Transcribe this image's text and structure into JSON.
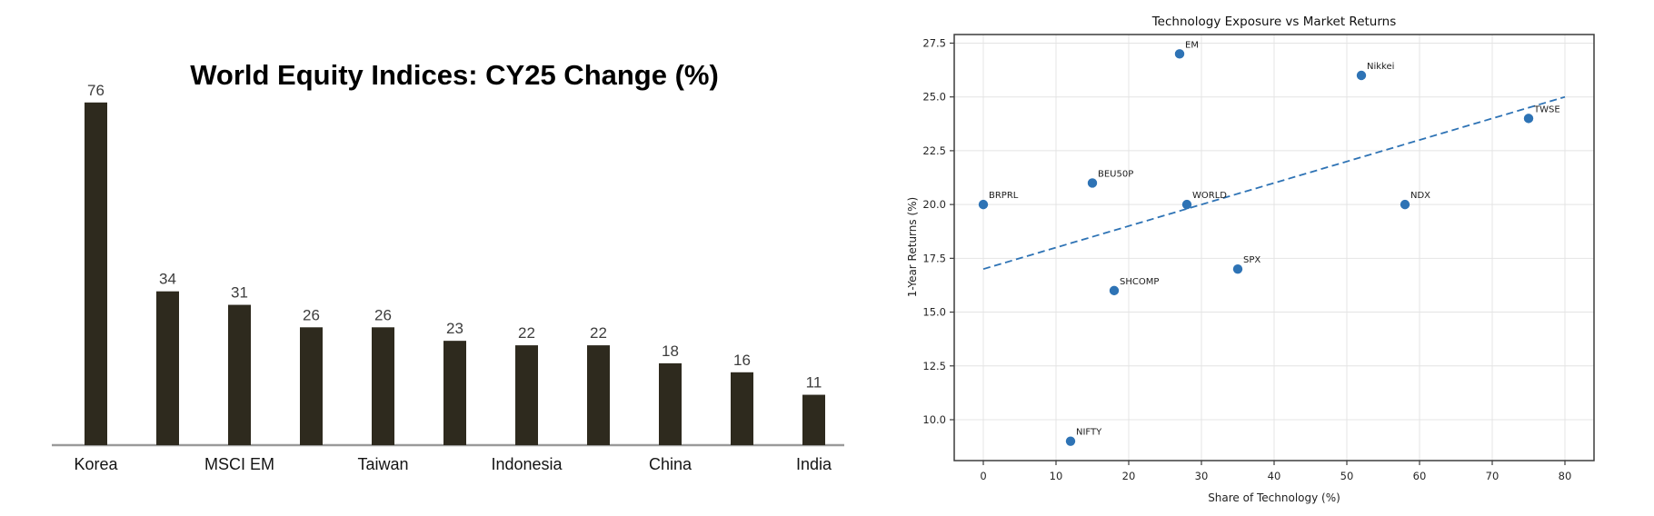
{
  "chart_data": [
    {
      "type": "bar",
      "title": "World Equity Indices: CY25 Change (%)",
      "values": [
        76,
        34,
        31,
        26,
        26,
        23,
        22,
        22,
        18,
        16,
        11
      ],
      "x_tick_labels": [
        "Korea",
        "MSCI EM",
        "Taiwan",
        "Indonesia",
        "China",
        "India"
      ],
      "x_tick_bar_indices": [
        0,
        2,
        4,
        6,
        8,
        10
      ],
      "ylim": [
        0,
        80
      ],
      "grid": false,
      "bar_color": "#2e2a1e",
      "value_label_color": "#3d3d3d",
      "axis_line_color": "#9a9a9a"
    },
    {
      "type": "scatter",
      "title": "Technology Exposure vs Market Returns",
      "xlabel": "Share of Technology (%)",
      "ylabel": "1-Year Returns (%)",
      "points": [
        {
          "label": "EM",
          "x": 27,
          "y": 27
        },
        {
          "label": "Nikkei",
          "x": 52,
          "y": 26
        },
        {
          "label": "TWSE",
          "x": 75,
          "y": 24
        },
        {
          "label": "BEU50P",
          "x": 15,
          "y": 21
        },
        {
          "label": "BRPRL",
          "x": 0,
          "y": 20
        },
        {
          "label": "WORLD",
          "x": 28,
          "y": 20
        },
        {
          "label": "NDX",
          "x": 58,
          "y": 20
        },
        {
          "label": "SPX",
          "x": 35,
          "y": 17
        },
        {
          "label": "SHCOMP",
          "x": 18,
          "y": 16
        },
        {
          "label": "NIFTY",
          "x": 12,
          "y": 9
        }
      ],
      "trendline": {
        "style": "dashed",
        "x1": 0,
        "y1": 17.0,
        "x2": 80,
        "y2": 25.0
      },
      "x_tick_labels": [
        "0",
        "10",
        "20",
        "30",
        "40",
        "50",
        "60",
        "70",
        "80"
      ],
      "y_tick_labels": [
        "10.0",
        "12.5",
        "15.0",
        "17.5",
        "20.0",
        "22.5",
        "25.0",
        "27.5"
      ],
      "xlim": [
        -4,
        84
      ],
      "ylim": [
        8.1,
        27.9
      ],
      "grid": true,
      "legend": "none",
      "point_color": "#2e73b5",
      "trend_color": "#2e73b5",
      "grid_color": "#e4e4e4",
      "spine_color": "#3c3c3c"
    }
  ]
}
